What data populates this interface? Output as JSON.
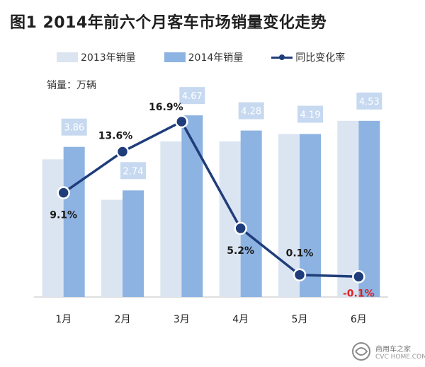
{
  "chart_data": {
    "type": "bar",
    "title": "图1  2014年前六个月客车市场销量变化走势",
    "unit_label": "销量：万辆",
    "categories": [
      "1月",
      "2月",
      "3月",
      "4月",
      "5月",
      "6月"
    ],
    "series": [
      {
        "name": "2013年销量",
        "kind": "bar",
        "color": "#dbe5f1",
        "values": [
          3.54,
          2.5,
          4.0,
          4.0,
          4.19,
          4.53
        ]
      },
      {
        "name": "2014年销量",
        "kind": "bar",
        "color": "#8db3e2",
        "values": [
          3.86,
          2.74,
          4.67,
          4.28,
          4.19,
          4.53
        ],
        "labels": [
          "3.86",
          "2.74",
          "4.67",
          "4.28",
          "4.19",
          "4.53"
        ]
      },
      {
        "name": "同比变化率",
        "kind": "line",
        "color": "#1f3d7a",
        "values": [
          9.1,
          13.6,
          16.9,
          5.2,
          0.1,
          -0.1
        ],
        "labels": [
          "9.1%",
          "13.6%",
          "16.9%",
          "5.2%",
          "0.1%",
          "-0.1%"
        ]
      }
    ],
    "negative_label_color": "#e02020",
    "value_label_bg": "#c6d9f0",
    "grid": false,
    "legend_position": "top"
  },
  "watermark": {
    "text": "商用车之家",
    "sub": "CVC HOME.COM"
  }
}
